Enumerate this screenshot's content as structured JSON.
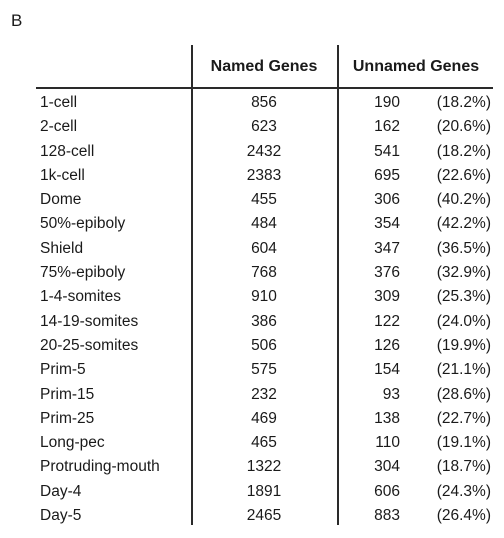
{
  "panel_label": "B",
  "table": {
    "headers": {
      "stage": "",
      "named": "Named Genes",
      "unnamed": "Unnamed Genes"
    },
    "rows": [
      {
        "stage": "1-cell",
        "named": "856",
        "unnamed_count": "190",
        "unnamed_pct": "(18.2%)"
      },
      {
        "stage": "2-cell",
        "named": "623",
        "unnamed_count": "162",
        "unnamed_pct": "(20.6%)"
      },
      {
        "stage": "128-cell",
        "named": "2432",
        "unnamed_count": "541",
        "unnamed_pct": "(18.2%)"
      },
      {
        "stage": "1k-cell",
        "named": "2383",
        "unnamed_count": "695",
        "unnamed_pct": "(22.6%)"
      },
      {
        "stage": "Dome",
        "named": "455",
        "unnamed_count": "306",
        "unnamed_pct": "(40.2%)"
      },
      {
        "stage": "50%-epiboly",
        "named": "484",
        "unnamed_count": "354",
        "unnamed_pct": "(42.2%)"
      },
      {
        "stage": "Shield",
        "named": "604",
        "unnamed_count": "347",
        "unnamed_pct": "(36.5%)"
      },
      {
        "stage": "75%-epiboly",
        "named": "768",
        "unnamed_count": "376",
        "unnamed_pct": "(32.9%)"
      },
      {
        "stage": "1-4-somites",
        "named": "910",
        "unnamed_count": "309",
        "unnamed_pct": "(25.3%)"
      },
      {
        "stage": "14-19-somites",
        "named": "386",
        "unnamed_count": "122",
        "unnamed_pct": "(24.0%)"
      },
      {
        "stage": "20-25-somites",
        "named": "506",
        "unnamed_count": "126",
        "unnamed_pct": "(19.9%)"
      },
      {
        "stage": "Prim-5",
        "named": "575",
        "unnamed_count": "154",
        "unnamed_pct": "(21.1%)"
      },
      {
        "stage": "Prim-15",
        "named": "232",
        "unnamed_count": "93",
        "unnamed_pct": "(28.6%)"
      },
      {
        "stage": "Prim-25",
        "named": "469",
        "unnamed_count": "138",
        "unnamed_pct": "(22.7%)"
      },
      {
        "stage": "Long-pec",
        "named": "465",
        "unnamed_count": "110",
        "unnamed_pct": "(19.1%)"
      },
      {
        "stage": "Protruding-mouth",
        "named": "1322",
        "unnamed_count": "304",
        "unnamed_pct": "(18.7%)"
      },
      {
        "stage": "Day-4",
        "named": "1891",
        "unnamed_count": "606",
        "unnamed_pct": "(24.3%)"
      },
      {
        "stage": "Day-5",
        "named": "2465",
        "unnamed_count": "883",
        "unnamed_pct": "(26.4%)"
      }
    ]
  }
}
